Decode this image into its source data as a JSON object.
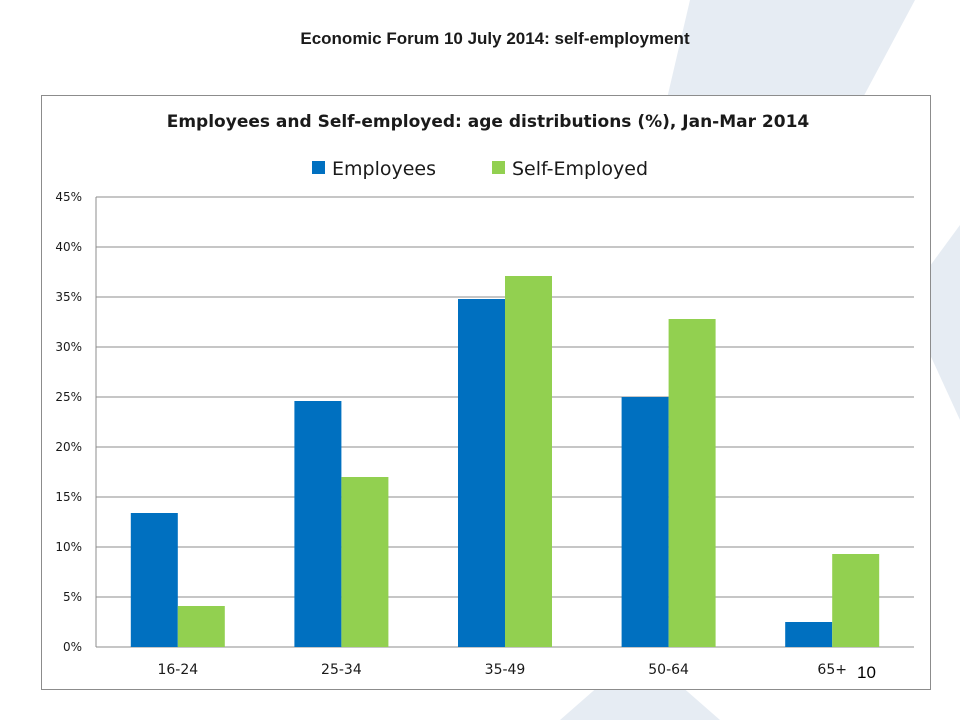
{
  "slide": {
    "title": "Economic Forum 10 July 2014: self-employment",
    "page_number": "10"
  },
  "colors": {
    "employees": "#0070c0",
    "self_employed": "#92d050",
    "gridline": "#8c8c8c",
    "watermark": "#e6ecf3"
  },
  "chart_data": {
    "type": "bar",
    "title": "Employees and Self-employed: age distributions (%), Jan-Mar 2014",
    "xlabel": "",
    "ylabel": "",
    "categories": [
      "16-24",
      "25-34",
      "35-49",
      "50-64",
      "65+"
    ],
    "series": [
      {
        "name": "Employees",
        "color": "#0070c0",
        "values": [
          13.4,
          24.6,
          34.8,
          25.0,
          2.5
        ]
      },
      {
        "name": "Self-Employed",
        "color": "#92d050",
        "values": [
          4.1,
          17.0,
          37.1,
          32.8,
          9.3
        ]
      }
    ],
    "ylim": [
      0,
      45
    ],
    "ytick_step": 5,
    "y_tick_labels": [
      "0%",
      "5%",
      "10%",
      "15%",
      "20%",
      "25%",
      "30%",
      "35%",
      "40%",
      "45%"
    ],
    "grid": true,
    "legend_position": "top"
  }
}
